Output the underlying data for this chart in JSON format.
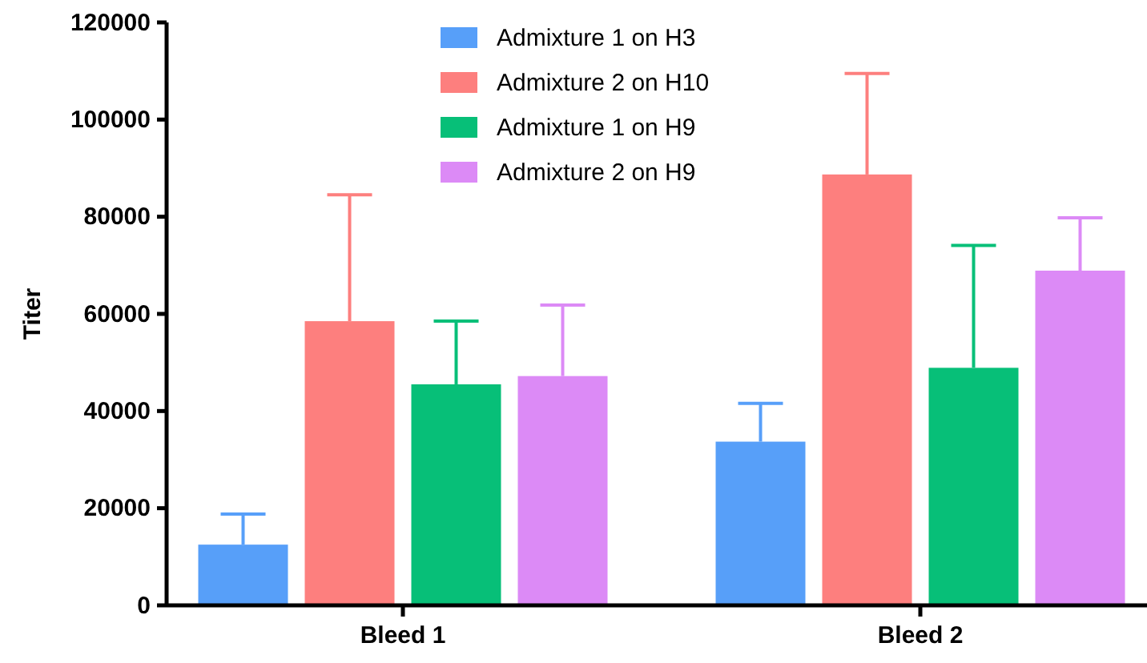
{
  "chart_data": {
    "type": "bar",
    "ylabel": "Titer",
    "categories": [
      "Bleed 1",
      "Bleed 2"
    ],
    "series": [
      {
        "name": "Admixture 1 on H3",
        "color": "#579ff9",
        "values": [
          12500,
          33700
        ],
        "errors": [
          [
            12500,
            18800
          ],
          [
            33700,
            41600
          ]
        ]
      },
      {
        "name": "Admixture 2 on H10",
        "color": "#fd7f7e",
        "values": [
          58500,
          88700
        ],
        "errors": [
          [
            58500,
            84500
          ],
          [
            88700,
            109500
          ]
        ]
      },
      {
        "name": "Admixture 1 on H9",
        "color": "#07bf78",
        "values": [
          45500,
          48900
        ],
        "errors": [
          [
            45500,
            58500
          ],
          [
            48900,
            74100
          ]
        ]
      },
      {
        "name": "Admixture 2 on H9",
        "color": "#dc8af6",
        "values": [
          47200,
          68900
        ],
        "errors": [
          [
            47200,
            61800
          ],
          [
            68900,
            79800
          ]
        ]
      }
    ],
    "ylim": [
      0,
      120000
    ],
    "yticks": [
      0,
      20000,
      40000,
      60000,
      80000,
      100000,
      120000
    ],
    "legend": "top",
    "grid": false
  }
}
